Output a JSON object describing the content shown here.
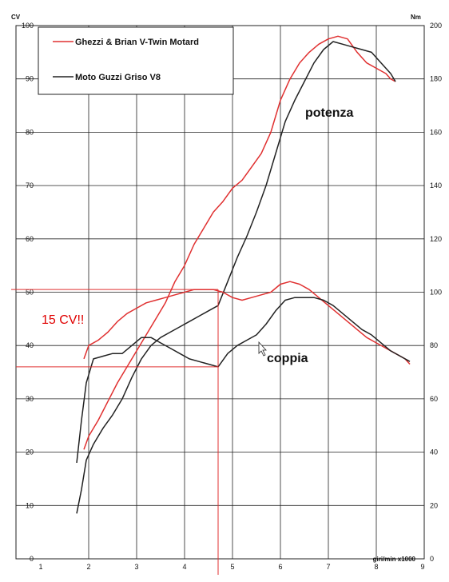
{
  "chart_data": {
    "type": "line",
    "title": "",
    "xlabel": "giri/min x1000",
    "ylabel_left": "CV",
    "ylabel_right": "Nm",
    "xlim": [
      1,
      9
    ],
    "ylim_left": [
      0,
      100
    ],
    "ylim_right": [
      0,
      200
    ],
    "grid": true,
    "legend_position": "top-left",
    "x_ticks": [
      "1",
      "2",
      "3",
      "4",
      "5",
      "6",
      "7",
      "8",
      "9"
    ],
    "y_ticks_left": [
      "0",
      "10",
      "20",
      "30",
      "40",
      "50",
      "60",
      "70",
      "80",
      "90",
      "100"
    ],
    "y_ticks_right": [
      "0",
      "20",
      "40",
      "60",
      "80",
      "100",
      "120",
      "140",
      "160",
      "180",
      "200"
    ],
    "series": [
      {
        "name": "Ghezzi & Brian V-Twin Motard",
        "color": "#e03030",
        "kind": "potenza",
        "axis": "left",
        "points": [
          [
            1.9,
            20.5
          ],
          [
            2.0,
            23.0
          ],
          [
            2.2,
            26.0
          ],
          [
            2.4,
            29.5
          ],
          [
            2.6,
            33.0
          ],
          [
            2.8,
            36.0
          ],
          [
            3.0,
            39.0
          ],
          [
            3.2,
            42.0
          ],
          [
            3.4,
            45.0
          ],
          [
            3.6,
            48.0
          ],
          [
            3.8,
            52.0
          ],
          [
            4.0,
            55.0
          ],
          [
            4.2,
            59.0
          ],
          [
            4.4,
            62.0
          ],
          [
            4.6,
            65.0
          ],
          [
            4.8,
            67.0
          ],
          [
            5.0,
            69.5
          ],
          [
            5.2,
            71.0
          ],
          [
            5.4,
            73.5
          ],
          [
            5.6,
            76.0
          ],
          [
            5.8,
            80.0
          ],
          [
            6.0,
            86.0
          ],
          [
            6.2,
            90.0
          ],
          [
            6.4,
            93.0
          ],
          [
            6.6,
            95.0
          ],
          [
            6.8,
            96.5
          ],
          [
            7.0,
            97.5
          ],
          [
            7.2,
            98.0
          ],
          [
            7.4,
            97.5
          ],
          [
            7.6,
            95.0
          ],
          [
            7.8,
            93.0
          ],
          [
            8.0,
            92.0
          ],
          [
            8.2,
            91.0
          ],
          [
            8.3,
            90.0
          ],
          [
            8.4,
            89.5
          ]
        ]
      },
      {
        "name": "Moto Guzzi Griso V8",
        "color": "#222222",
        "kind": "potenza",
        "axis": "left",
        "points": [
          [
            1.75,
            8.5
          ],
          [
            1.85,
            13.0
          ],
          [
            1.95,
            18.5
          ],
          [
            2.1,
            21.5
          ],
          [
            2.3,
            24.5
          ],
          [
            2.5,
            27.0
          ],
          [
            2.7,
            30.0
          ],
          [
            2.9,
            34.0
          ],
          [
            3.1,
            37.5
          ],
          [
            3.3,
            40.0
          ],
          [
            3.5,
            41.5
          ],
          [
            3.7,
            42.5
          ],
          [
            3.9,
            43.5
          ],
          [
            4.1,
            44.5
          ],
          [
            4.3,
            45.5
          ],
          [
            4.5,
            46.5
          ],
          [
            4.7,
            47.5
          ],
          [
            4.9,
            52.0
          ],
          [
            5.1,
            56.5
          ],
          [
            5.3,
            60.5
          ],
          [
            5.5,
            65.0
          ],
          [
            5.7,
            70.0
          ],
          [
            5.9,
            76.0
          ],
          [
            6.1,
            82.0
          ],
          [
            6.3,
            86.0
          ],
          [
            6.5,
            89.5
          ],
          [
            6.7,
            93.0
          ],
          [
            6.9,
            95.5
          ],
          [
            7.1,
            97.0
          ],
          [
            7.3,
            96.5
          ],
          [
            7.5,
            96.0
          ],
          [
            7.7,
            95.5
          ],
          [
            7.9,
            95.0
          ],
          [
            8.1,
            93.0
          ],
          [
            8.3,
            91.0
          ],
          [
            8.4,
            89.5
          ]
        ]
      },
      {
        "name": "Ghezzi & Brian V-Twin Motard",
        "color": "#e03030",
        "kind": "coppia",
        "axis": "left",
        "points": [
          [
            1.9,
            37.5
          ],
          [
            2.0,
            40.0
          ],
          [
            2.2,
            41.0
          ],
          [
            2.4,
            42.5
          ],
          [
            2.6,
            44.5
          ],
          [
            2.8,
            46.0
          ],
          [
            3.0,
            47.0
          ],
          [
            3.2,
            48.0
          ],
          [
            3.4,
            48.5
          ],
          [
            3.6,
            49.0
          ],
          [
            3.8,
            49.5
          ],
          [
            4.0,
            50.0
          ],
          [
            4.2,
            50.5
          ],
          [
            4.4,
            50.5
          ],
          [
            4.6,
            50.5
          ],
          [
            4.8,
            50.0
          ],
          [
            5.0,
            49.0
          ],
          [
            5.2,
            48.5
          ],
          [
            5.4,
            49.0
          ],
          [
            5.6,
            49.5
          ],
          [
            5.8,
            50.0
          ],
          [
            6.0,
            51.5
          ],
          [
            6.2,
            52.0
          ],
          [
            6.4,
            51.5
          ],
          [
            6.6,
            50.5
          ],
          [
            6.8,
            49.0
          ],
          [
            7.0,
            47.5
          ],
          [
            7.2,
            46.0
          ],
          [
            7.4,
            44.5
          ],
          [
            7.6,
            43.0
          ],
          [
            7.8,
            41.5
          ],
          [
            8.0,
            40.5
          ],
          [
            8.2,
            39.5
          ],
          [
            8.4,
            38.5
          ],
          [
            8.6,
            37.5
          ],
          [
            8.7,
            36.5
          ]
        ]
      },
      {
        "name": "Moto Guzzi Griso V8",
        "color": "#222222",
        "kind": "coppia",
        "axis": "left",
        "points": [
          [
            1.75,
            18.0
          ],
          [
            1.85,
            26.0
          ],
          [
            1.95,
            33.0
          ],
          [
            2.1,
            37.5
          ],
          [
            2.3,
            38.0
          ],
          [
            2.5,
            38.5
          ],
          [
            2.7,
            38.5
          ],
          [
            2.9,
            40.0
          ],
          [
            3.1,
            41.5
          ],
          [
            3.3,
            41.5
          ],
          [
            3.5,
            40.5
          ],
          [
            3.7,
            39.5
          ],
          [
            3.9,
            38.5
          ],
          [
            4.1,
            37.5
          ],
          [
            4.3,
            37.0
          ],
          [
            4.5,
            36.5
          ],
          [
            4.7,
            36.0
          ],
          [
            4.9,
            38.5
          ],
          [
            5.1,
            40.0
          ],
          [
            5.3,
            41.0
          ],
          [
            5.5,
            42.0
          ],
          [
            5.7,
            44.0
          ],
          [
            5.9,
            46.5
          ],
          [
            6.1,
            48.5
          ],
          [
            6.3,
            49.0
          ],
          [
            6.5,
            49.0
          ],
          [
            6.7,
            49.0
          ],
          [
            6.9,
            48.5
          ],
          [
            7.1,
            47.5
          ],
          [
            7.3,
            46.0
          ],
          [
            7.5,
            44.5
          ],
          [
            7.7,
            43.0
          ],
          [
            7.9,
            42.0
          ],
          [
            8.1,
            40.5
          ],
          [
            8.3,
            39.0
          ],
          [
            8.5,
            38.0
          ],
          [
            8.7,
            37.0
          ]
        ]
      }
    ],
    "annotations": {
      "potenza": "potenza",
      "coppia": "coppia",
      "gap": "15 CV!!"
    },
    "markers": {
      "rpm": 4.7,
      "upper_cv": 50.5,
      "lower_cv": 36.0
    }
  }
}
